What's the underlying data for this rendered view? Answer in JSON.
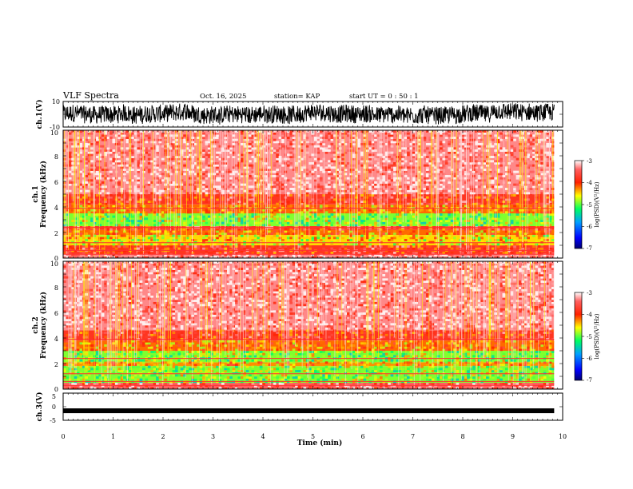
{
  "header": {
    "title": "VLF Spectra",
    "date": "Oct. 16, 2025",
    "station": "station= KAP",
    "start": "start  UT =   0 : 50 : 1"
  },
  "chart_data": [
    {
      "type": "line",
      "name": "ch1-waveform",
      "ylabel": "ch.1(V)",
      "ylim": [
        -10,
        10
      ],
      "yticks": [
        "10",
        "-10"
      ],
      "xlim": [
        0,
        10
      ],
      "data_end_min": 9.83,
      "description_of_values": "noisy signal oscillating roughly between -8 and +8 V"
    },
    {
      "type": "heatmap",
      "name": "ch1-spectrogram",
      "ylabel_line1": "ch.1",
      "ylabel_line2": "Frequency  (kHz)",
      "ylim": [
        0,
        10
      ],
      "yticks": [
        "0",
        "2",
        "4",
        "6",
        "8",
        "10"
      ],
      "xlim": [
        0,
        10
      ],
      "data_end_min": 9.83,
      "bands": [
        {
          "f0": 0.0,
          "f1": 0.3,
          "level": -3.3
        },
        {
          "f0": 0.3,
          "f1": 1.0,
          "level": -3.8
        },
        {
          "f0": 1.0,
          "f1": 1.8,
          "level": -4.5
        },
        {
          "f0": 1.8,
          "f1": 2.2,
          "level": -4.2
        },
        {
          "f0": 2.2,
          "f1": 2.5,
          "level": -3.8
        },
        {
          "f0": 2.5,
          "f1": 3.5,
          "level": -4.9
        },
        {
          "f0": 3.5,
          "f1": 4.2,
          "level": -4.2
        },
        {
          "f0": 4.2,
          "f1": 5.0,
          "level": -3.8
        },
        {
          "f0": 5.0,
          "f1": 10.0,
          "level": -3.3
        }
      ],
      "colorbar": {
        "label": "log(PSD)(V²/Hz)",
        "ticks": [
          "-3",
          "-4",
          "-5",
          "-6",
          "-7"
        ],
        "range": [
          -7,
          -3
        ]
      }
    },
    {
      "type": "heatmap",
      "name": "ch2-spectrogram",
      "ylabel_line1": "ch.2",
      "ylabel_line2": "Frequency  (kHz)",
      "ylim": [
        0,
        10
      ],
      "yticks": [
        "0",
        "2",
        "4",
        "6",
        "8",
        "10"
      ],
      "xlim": [
        0,
        10
      ],
      "data_end_min": 9.83,
      "bands": [
        {
          "f0": 0.0,
          "f1": 0.5,
          "level": -3.4
        },
        {
          "f0": 0.5,
          "f1": 1.8,
          "level": -4.9
        },
        {
          "f0": 1.8,
          "f1": 2.1,
          "level": -4.3
        },
        {
          "f0": 2.1,
          "f1": 3.0,
          "level": -4.9
        },
        {
          "f0": 3.0,
          "f1": 3.8,
          "level": -4.2
        },
        {
          "f0": 3.8,
          "f1": 4.6,
          "level": -3.8
        },
        {
          "f0": 4.6,
          "f1": 10.0,
          "level": -3.3
        }
      ],
      "colorbar": {
        "label": "log(PSD)(V²/Hz)",
        "ticks": [
          "-3",
          "-4",
          "-5",
          "-6",
          "-7"
        ],
        "range": [
          -7,
          -3
        ]
      }
    },
    {
      "type": "line",
      "name": "ch3-waveform",
      "ylabel": "ch.3(V)",
      "ylim": [
        -5,
        5
      ],
      "yticks": [
        "5",
        "0",
        "-5"
      ],
      "xlim": [
        0,
        10
      ],
      "data_end_min": 9.83,
      "level": -1.5,
      "description_of_values": "near-constant thick trace at about -1.5 V"
    }
  ],
  "xaxis": {
    "label": "Time  (min)",
    "ticks": [
      "0",
      "1",
      "2",
      "3",
      "4",
      "5",
      "6",
      "7",
      "8",
      "9",
      "10"
    ]
  },
  "colors": {
    "colormap": [
      "#000070",
      "#0000ff",
      "#00a0ff",
      "#00ff60",
      "#ffff00",
      "#ff2000",
      "#ff6060",
      "#ffffff"
    ]
  }
}
